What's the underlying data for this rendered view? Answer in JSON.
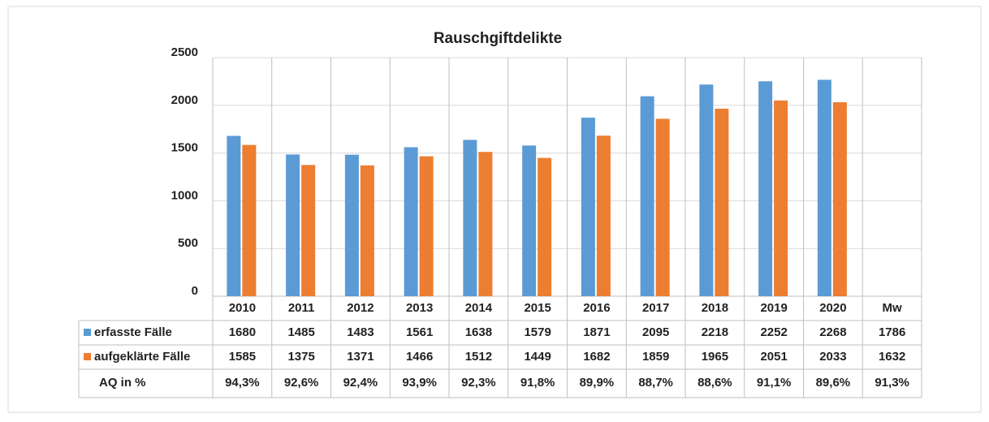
{
  "chart_data": {
    "type": "bar",
    "title": "Rauschgiftdelikte",
    "categories": [
      "2010",
      "2011",
      "2012",
      "2013",
      "2014",
      "2015",
      "2016",
      "2017",
      "2018",
      "2019",
      "2020"
    ],
    "series": [
      {
        "name": "erfasste Fälle",
        "color": "#5b9bd5",
        "values": [
          1680,
          1485,
          1483,
          1561,
          1638,
          1579,
          1871,
          2095,
          2218,
          2252,
          2268
        ]
      },
      {
        "name": "aufgeklärte Fälle",
        "color": "#ed7d31",
        "values": [
          1585,
          1375,
          1371,
          1466,
          1512,
          1449,
          1682,
          1859,
          1965,
          2051,
          2033
        ]
      }
    ],
    "aq": {
      "name": "AQ in %",
      "values": [
        "94,3%",
        "92,6%",
        "92,4%",
        "93,9%",
        "92,3%",
        "91,8%",
        "89,9%",
        "88,7%",
        "88,6%",
        "91,1%",
        "89,6%"
      ]
    },
    "mean": {
      "label": "Mw",
      "values": [
        1786,
        1632
      ],
      "aq": "91,3%"
    },
    "ylim": [
      0,
      2500
    ],
    "yticks": [
      0,
      500,
      1000,
      1500,
      2000,
      2500
    ],
    "grid": true
  }
}
